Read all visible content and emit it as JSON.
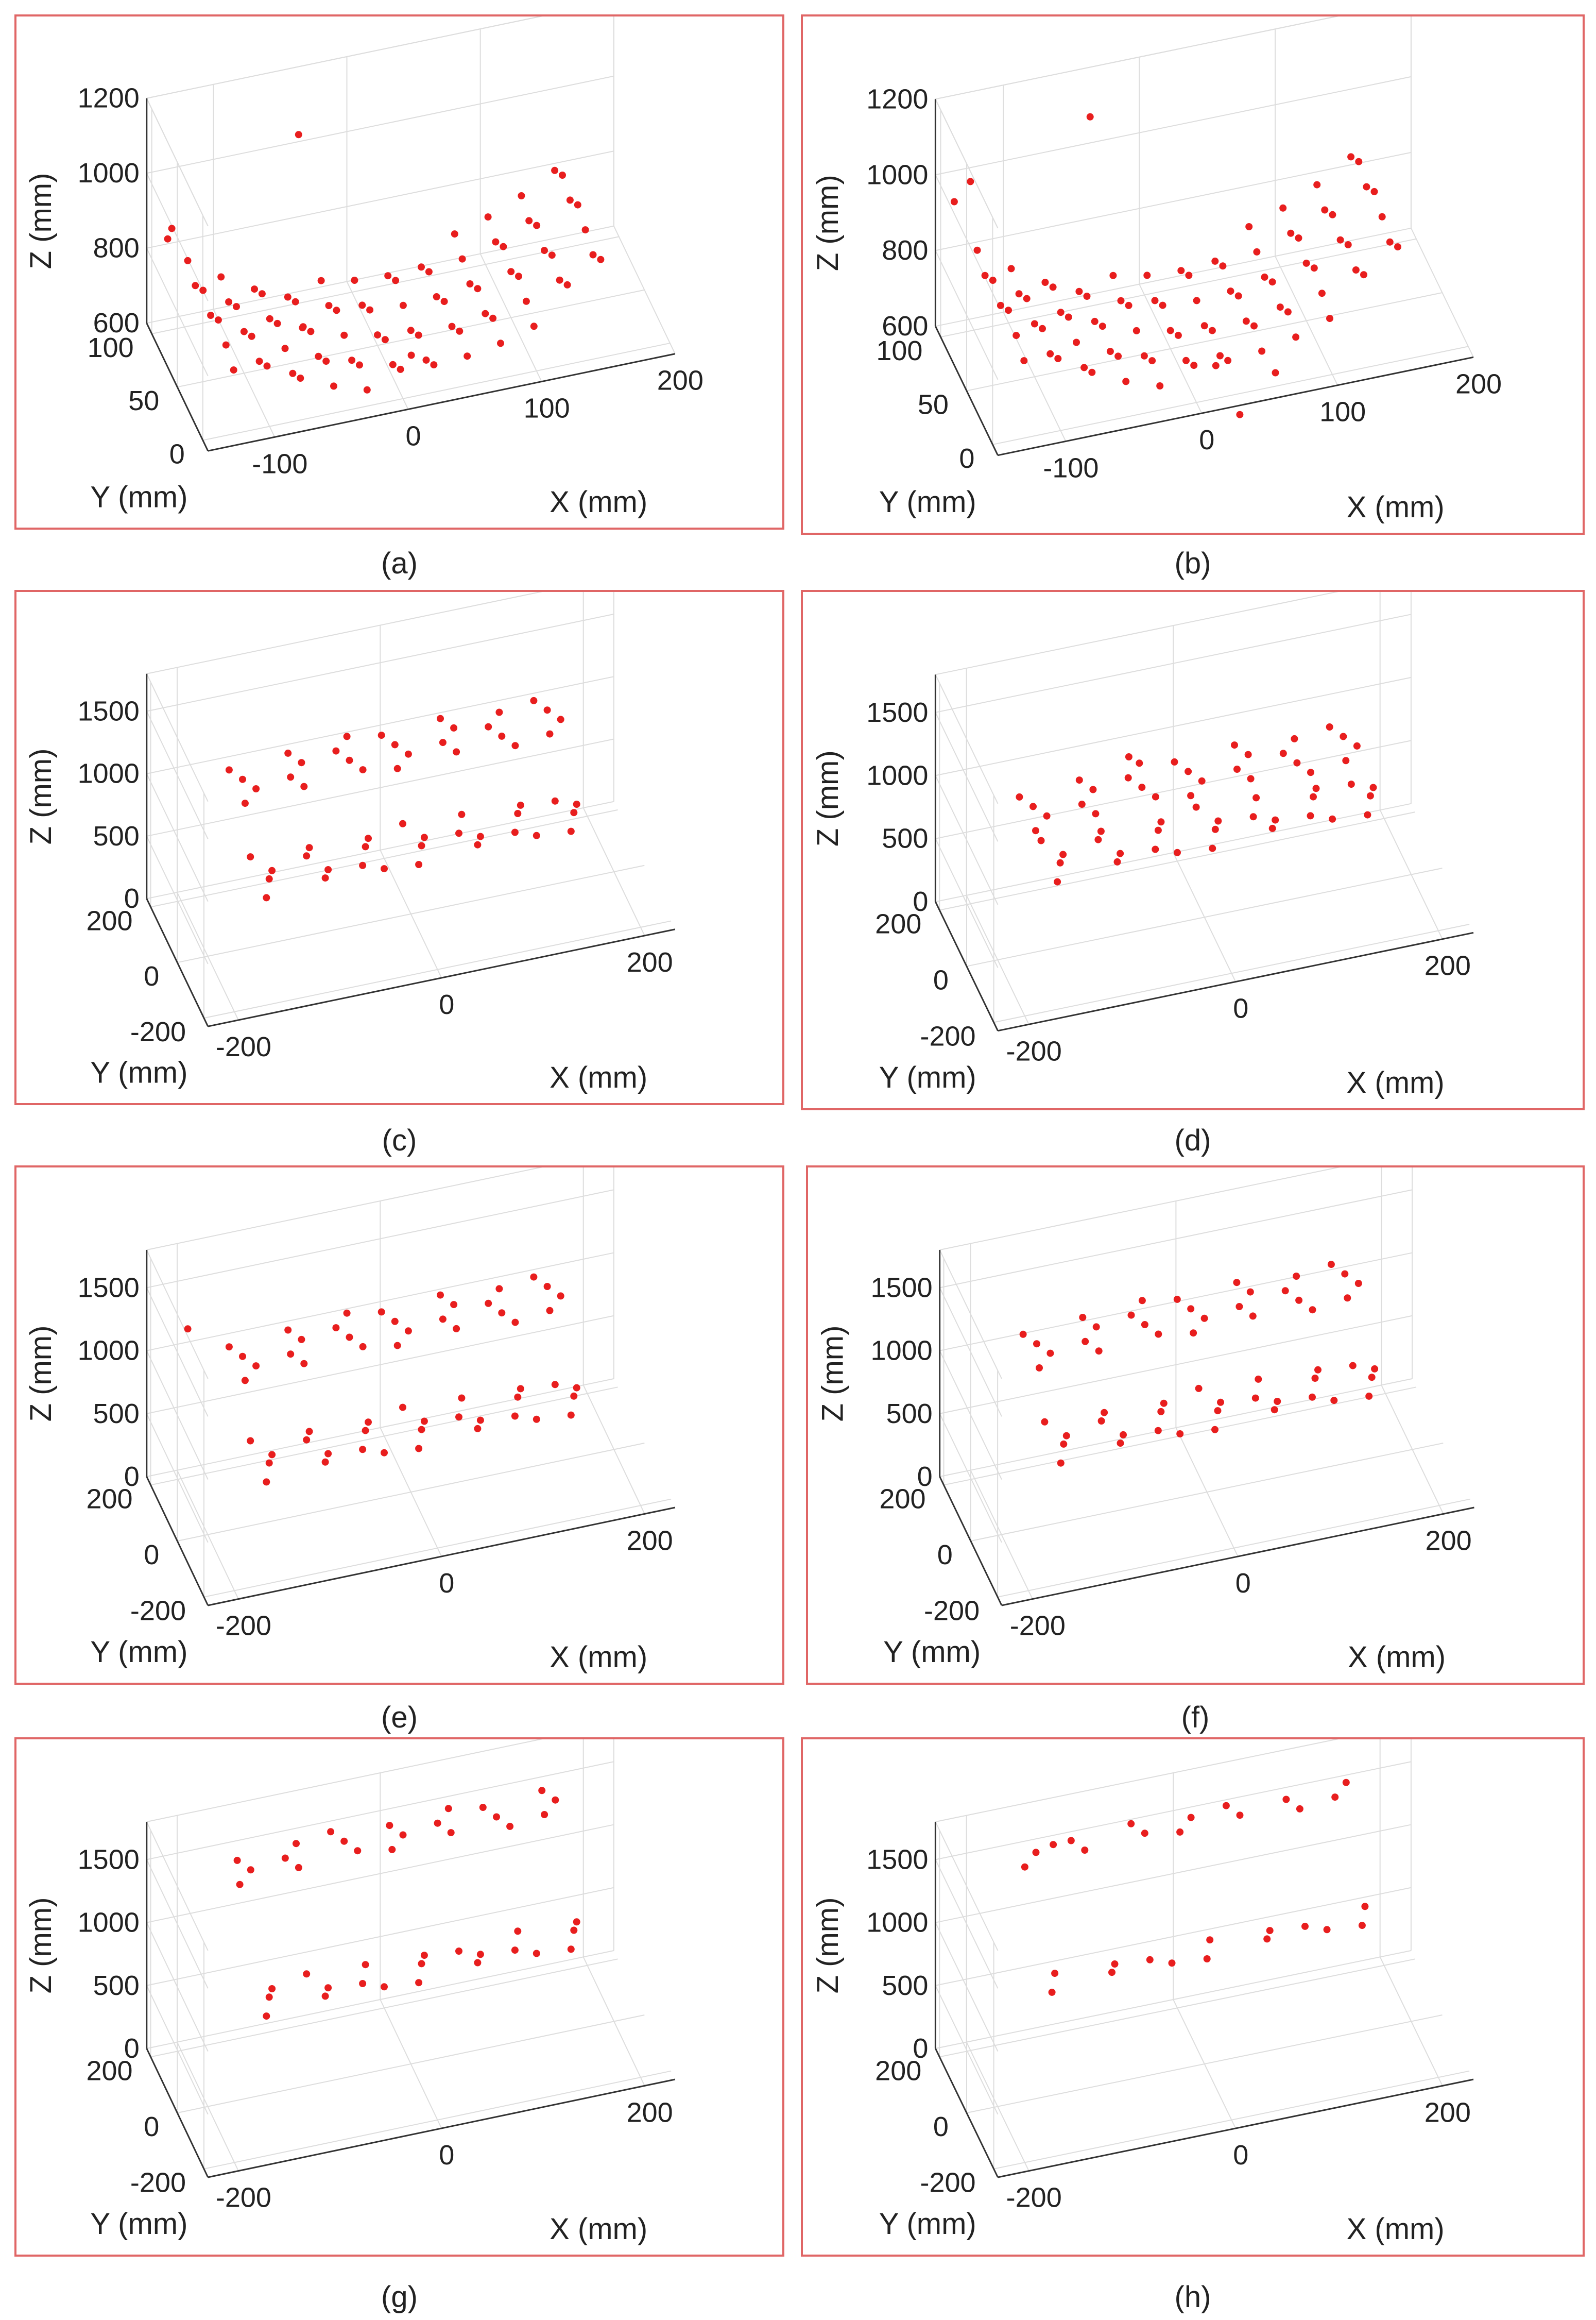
{
  "colors": {
    "marker": "#e81e1e",
    "frame": "#e06666",
    "axis": "#333333",
    "grid": "#dddddd"
  },
  "chart_data": [
    {
      "id": "a",
      "caption": "(a)",
      "type": "scatter",
      "xlabel": "X (mm)",
      "ylabel": "Y (mm)",
      "zlabel": "Z (mm)",
      "xlim": [
        -150,
        200
      ],
      "ylim": [
        -10,
        110
      ],
      "zlim": [
        600,
        1200
      ],
      "xticks": [
        "-100",
        "0",
        "100",
        "200"
      ],
      "xtickvals": [
        -100,
        0,
        100,
        200
      ],
      "yticks": [
        "0",
        "50",
        "100"
      ],
      "ytickvals": [
        0,
        50,
        100
      ],
      "zticks": [
        "600",
        "800",
        "1000",
        "1200"
      ],
      "ztickvals": [
        600,
        800,
        1000,
        1200
      ],
      "gen": {
        "kind": "sag",
        "xs": [
          -125,
          -100,
          -75,
          -50,
          -25,
          0,
          25,
          50,
          75,
          100,
          125,
          150
        ],
        "ys": [
          5,
          20,
          35,
          50,
          65,
          80,
          95
        ],
        "z_center": 640,
        "z_edge": 840
      },
      "outliers": [
        [
          -140,
          95,
          860
        ],
        [
          -135,
          100,
          870
        ],
        [
          -40,
          100,
          1050
        ],
        [
          -60,
          40,
          720
        ],
        [
          10,
          10,
          680
        ]
      ]
    },
    {
      "id": "b",
      "caption": "(b)",
      "type": "scatter",
      "xlabel": "X (mm)",
      "ylabel": "Y (mm)",
      "zlabel": "Z (mm)",
      "xlim": [
        -150,
        200
      ],
      "ylim": [
        -10,
        110
      ],
      "zlim": [
        600,
        1200
      ],
      "xticks": [
        "-100",
        "0",
        "100",
        "200"
      ],
      "xtickvals": [
        -100,
        0,
        100,
        200
      ],
      "yticks": [
        "0",
        "50",
        "100"
      ],
      "ytickvals": [
        0,
        50,
        100
      ],
      "zticks": [
        "600",
        "800",
        "1000",
        "1200"
      ],
      "ztickvals": [
        600,
        800,
        1000,
        1200
      ],
      "gen": {
        "kind": "sag",
        "xs": [
          -125,
          -100,
          -75,
          -50,
          -25,
          0,
          25,
          50,
          75,
          100,
          125,
          150
        ],
        "ys": [
          5,
          20,
          35,
          50,
          65,
          80,
          95
        ],
        "z_center": 660,
        "z_edge": 880
      },
      "outliers": [
        [
          -140,
          100,
          950
        ],
        [
          -130,
          95,
          1010
        ],
        [
          -40,
          100,
          1100
        ],
        [
          20,
          15,
          640
        ],
        [
          60,
          5,
          620
        ],
        [
          30,
          -5,
          560
        ]
      ]
    },
    {
      "id": "c",
      "caption": "(c)",
      "type": "scatter",
      "xlabel": "X (mm)",
      "ylabel": "Y (mm)",
      "zlabel": "Z (mm)",
      "xlim": [
        -230,
        230
      ],
      "ylim": [
        -230,
        230
      ],
      "zlim": [
        0,
        1800
      ],
      "xticks": [
        "-200",
        "0",
        "200"
      ],
      "xtickvals": [
        -200,
        0,
        200
      ],
      "yticks": [
        "-200",
        "0",
        "200"
      ],
      "ytickvals": [
        -200,
        0,
        200
      ],
      "zticks": [
        "0",
        "500",
        "1000",
        "1500"
      ],
      "ztickvals": [
        0,
        500,
        1000,
        1500
      ],
      "gen": {
        "kind": "planes",
        "xs": [
          -150,
          -100,
          -50,
          0,
          50,
          100,
          150
        ],
        "y_low": [
          -120,
          -80,
          -40,
          0
        ],
        "y_high": [
          40,
          80,
          120,
          160
        ],
        "z_low": 700,
        "z_high": 1100
      },
      "outliers": []
    },
    {
      "id": "d",
      "caption": "(d)",
      "type": "scatter",
      "xlabel": "X (mm)",
      "ylabel": "Y (mm)",
      "zlabel": "Z (mm)",
      "xlim": [
        -230,
        230
      ],
      "ylim": [
        -230,
        230
      ],
      "zlim": [
        0,
        1800
      ],
      "xticks": [
        "-200",
        "0",
        "200"
      ],
      "xtickvals": [
        -200,
        0,
        200
      ],
      "yticks": [
        "-200",
        "0",
        "200"
      ],
      "ytickvals": [
        -200,
        0,
        200
      ],
      "zticks": [
        "0",
        "500",
        "1000",
        "1500"
      ],
      "ztickvals": [
        0,
        500,
        1000,
        1500
      ],
      "gen": {
        "kind": "planes",
        "xs": [
          -150,
          -100,
          -50,
          0,
          50,
          100,
          150
        ],
        "y_low": [
          -120,
          -80,
          -40,
          0
        ],
        "y_high": [
          40,
          80,
          120,
          160
        ],
        "z_low": 850,
        "z_high": 900
      },
      "outliers": [
        [
          -60,
          100,
          1150
        ]
      ]
    },
    {
      "id": "e",
      "caption": "(e)",
      "type": "scatter",
      "xlabel": "X (mm)",
      "ylabel": "Y (mm)",
      "zlabel": "Z (mm)",
      "xlim": [
        -230,
        230
      ],
      "ylim": [
        -230,
        230
      ],
      "zlim": [
        0,
        1800
      ],
      "xticks": [
        "-200",
        "0",
        "200"
      ],
      "xtickvals": [
        -200,
        0,
        200
      ],
      "yticks": [
        "-200",
        "0",
        "200"
      ],
      "ytickvals": [
        -200,
        0,
        200
      ],
      "zticks": [
        "0",
        "500",
        "1000",
        "1500"
      ],
      "ztickvals": [
        0,
        500,
        1000,
        1500
      ],
      "gen": {
        "kind": "planes",
        "xs": [
          -150,
          -100,
          -50,
          0,
          50,
          100,
          150
        ],
        "y_low": [
          -120,
          -80,
          -40,
          0
        ],
        "y_high": [
          40,
          80,
          120,
          160
        ],
        "z_low": 650,
        "z_high": 1100
      },
      "outliers": [
        [
          -200,
          150,
          1300
        ]
      ]
    },
    {
      "id": "f",
      "caption": "(f)",
      "type": "scatter",
      "xlabel": "X (mm)",
      "ylabel": "Y (mm)",
      "zlabel": "Z (mm)",
      "xlim": [
        -230,
        230
      ],
      "ylim": [
        -230,
        230
      ],
      "zlim": [
        0,
        1800
      ],
      "xticks": [
        "-200",
        "0",
        "200"
      ],
      "xtickvals": [
        -200,
        0,
        200
      ],
      "yticks": [
        "-200",
        "0",
        "200"
      ],
      "ytickvals": [
        -200,
        0,
        200
      ],
      "zticks": [
        "0",
        "500",
        "1000",
        "1500"
      ],
      "ztickvals": [
        0,
        500,
        1000,
        1500
      ],
      "gen": {
        "kind": "planes",
        "xs": [
          -150,
          -100,
          -50,
          0,
          50,
          100,
          150
        ],
        "y_low": [
          -120,
          -80,
          -40,
          0
        ],
        "y_high": [
          40,
          80,
          120,
          160
        ],
        "z_low": 800,
        "z_high": 1200
      },
      "outliers": []
    },
    {
      "id": "g",
      "caption": "(g)",
      "type": "scatter",
      "xlabel": "X (mm)",
      "ylabel": "Y (mm)",
      "zlabel": "Z (mm)",
      "xlim": [
        -230,
        230
      ],
      "ylim": [
        -230,
        230
      ],
      "zlim": [
        0,
        1800
      ],
      "xticks": [
        "-200",
        "0",
        "200"
      ],
      "xtickvals": [
        -200,
        0,
        200
      ],
      "yticks": [
        "-200",
        "0",
        "200"
      ],
      "ytickvals": [
        -200,
        0,
        200
      ],
      "zticks": [
        "0",
        "500",
        "1000",
        "1500"
      ],
      "ztickvals": [
        0,
        500,
        1000,
        1500
      ],
      "gen": {
        "kind": "planes",
        "xs": [
          -150,
          -100,
          -50,
          0,
          50,
          100,
          150
        ],
        "y_low": [
          -120,
          -80,
          -40
        ],
        "y_high": [
          80,
          120,
          160
        ],
        "z_low": 950,
        "z_high": 1550
      },
      "outliers": []
    },
    {
      "id": "h",
      "caption": "(h)",
      "type": "scatter",
      "xlabel": "X (mm)",
      "ylabel": "Y (mm)",
      "zlabel": "Z (mm)",
      "xlim": [
        -230,
        230
      ],
      "ylim": [
        -230,
        230
      ],
      "zlim": [
        0,
        1800
      ],
      "xticks": [
        "-200",
        "0",
        "200"
      ],
      "xtickvals": [
        -200,
        0,
        200
      ],
      "yticks": [
        "-200",
        "0",
        "200"
      ],
      "ytickvals": [
        -200,
        0,
        200
      ],
      "zticks": [
        "0",
        "500",
        "1000",
        "1500"
      ],
      "ztickvals": [
        0,
        500,
        1000,
        1500
      ],
      "gen": {
        "kind": "planes",
        "xs": [
          -150,
          -100,
          -50,
          0,
          50,
          100,
          150
        ],
        "y_low": [
          -80,
          -40
        ],
        "y_high": [
          120,
          160
        ],
        "z_low": 1050,
        "z_high": 1600
      },
      "outliers": [
        [
          -120,
          200,
          1500
        ]
      ]
    }
  ]
}
